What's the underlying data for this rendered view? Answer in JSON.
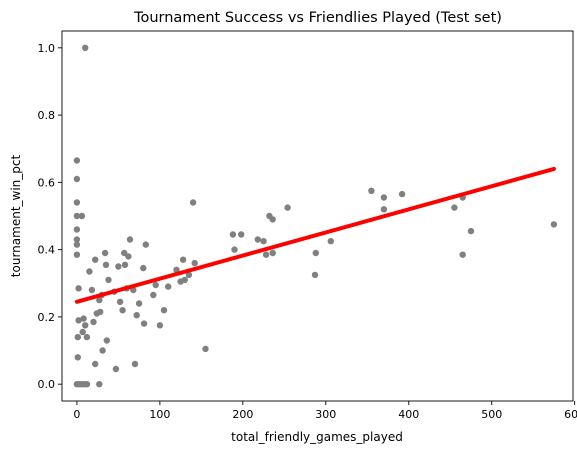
{
  "chart_data": {
    "type": "scatter",
    "title": "Tournament Success vs Friendlies Played (Test set)",
    "xlabel": "total_friendly_games_played",
    "ylabel": "tournament_win_pct",
    "xlim": [
      -18,
      598
    ],
    "ylim": [
      -0.05,
      1.05
    ],
    "xticks": [
      0,
      100,
      200,
      300,
      400,
      500,
      600
    ],
    "yticks": [
      0.0,
      0.2,
      0.4,
      0.6,
      0.8,
      1.0
    ],
    "xtick_labels": [
      "0",
      "100",
      "200",
      "300",
      "400",
      "500",
      "600"
    ],
    "ytick_labels": [
      "0.0",
      "0.2",
      "0.4",
      "0.6",
      "0.8",
      "1.0"
    ],
    "grid": false,
    "colors": {
      "points": "#808080",
      "fit_line": "#ff0000"
    },
    "fit_line": {
      "x": [
        0,
        575
      ],
      "y": [
        0.245,
        0.64
      ]
    },
    "points": [
      [
        0,
        0.665
      ],
      [
        0,
        0.61
      ],
      [
        0,
        0.54
      ],
      [
        0,
        0.5
      ],
      [
        0,
        0.46
      ],
      [
        0,
        0.43
      ],
      [
        0,
        0.415
      ],
      [
        0,
        0.385
      ],
      [
        2,
        0.285
      ],
      [
        2,
        0.19
      ],
      [
        1,
        0.14
      ],
      [
        1,
        0.08
      ],
      [
        0,
        0.0
      ],
      [
        3,
        0.0
      ],
      [
        6,
        0.0
      ],
      [
        9,
        0.0
      ],
      [
        12,
        0.0
      ],
      [
        6,
        0.5
      ],
      [
        10,
        1.0
      ],
      [
        8,
        0.195
      ],
      [
        10,
        0.175
      ],
      [
        7,
        0.155
      ],
      [
        12,
        0.14
      ],
      [
        15,
        0.335
      ],
      [
        18,
        0.28
      ],
      [
        20,
        0.185
      ],
      [
        22,
        0.06
      ],
      [
        22,
        0.37
      ],
      [
        24,
        0.21
      ],
      [
        27,
        0.25
      ],
      [
        28,
        0.215
      ],
      [
        27,
        0.0
      ],
      [
        30,
        0.265
      ],
      [
        31,
        0.1
      ],
      [
        34,
        0.39
      ],
      [
        35,
        0.355
      ],
      [
        36,
        0.13
      ],
      [
        38,
        0.31
      ],
      [
        45,
        0.275
      ],
      [
        47,
        0.045
      ],
      [
        50,
        0.35
      ],
      [
        52,
        0.245
      ],
      [
        55,
        0.22
      ],
      [
        57,
        0.39
      ],
      [
        58,
        0.355
      ],
      [
        60,
        0.285
      ],
      [
        62,
        0.38
      ],
      [
        64,
        0.43
      ],
      [
        68,
        0.28
      ],
      [
        70,
        0.06
      ],
      [
        72,
        0.205
      ],
      [
        75,
        0.24
      ],
      [
        80,
        0.345
      ],
      [
        81,
        0.18
      ],
      [
        83,
        0.415
      ],
      [
        92,
        0.265
      ],
      [
        95,
        0.295
      ],
      [
        100,
        0.175
      ],
      [
        105,
        0.22
      ],
      [
        110,
        0.29
      ],
      [
        120,
        0.34
      ],
      [
        125,
        0.305
      ],
      [
        128,
        0.37
      ],
      [
        130,
        0.31
      ],
      [
        135,
        0.325
      ],
      [
        140,
        0.54
      ],
      [
        142,
        0.36
      ],
      [
        155,
        0.105
      ],
      [
        188,
        0.445
      ],
      [
        190,
        0.4
      ],
      [
        198,
        0.445
      ],
      [
        218,
        0.43
      ],
      [
        225,
        0.425
      ],
      [
        228,
        0.385
      ],
      [
        232,
        0.5
      ],
      [
        236,
        0.49
      ],
      [
        236,
        0.39
      ],
      [
        254,
        0.525
      ],
      [
        287,
        0.325
      ],
      [
        288,
        0.39
      ],
      [
        306,
        0.425
      ],
      [
        355,
        0.575
      ],
      [
        370,
        0.555
      ],
      [
        370,
        0.52
      ],
      [
        392,
        0.565
      ],
      [
        455,
        0.525
      ],
      [
        465,
        0.555
      ],
      [
        465,
        0.385
      ],
      [
        475,
        0.455
      ],
      [
        575,
        0.475
      ]
    ]
  }
}
